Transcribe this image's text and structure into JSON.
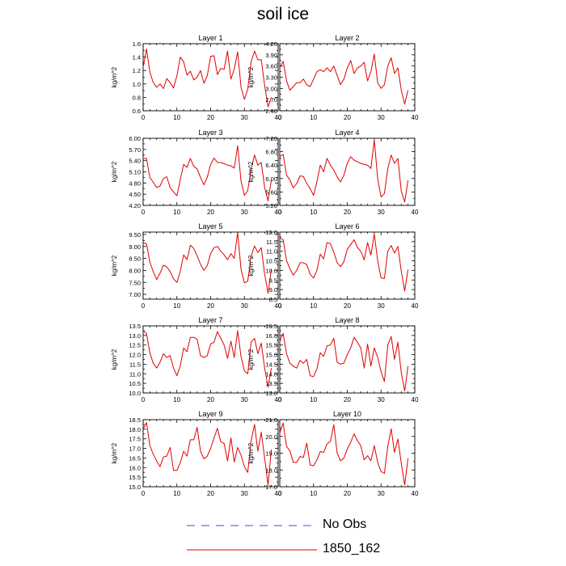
{
  "title": "soil ice",
  "legend": [
    {
      "label": "No Obs",
      "color": "#4a4ac8",
      "dash": true
    },
    {
      "label": "1850_162",
      "color": "#e00000",
      "dash": false
    }
  ],
  "chart_data": [
    {
      "type": "line",
      "title": "Layer 1",
      "ylabel": "kg/m^2",
      "xlim": [
        0,
        40
      ],
      "xticks": [
        0,
        10,
        20,
        30,
        40
      ],
      "ylim": [
        0.6,
        1.6
      ],
      "yticks": [
        "0.6",
        "0.8",
        "1.0",
        "1.2",
        "1.4",
        "1.6"
      ],
      "x": [
        0,
        1,
        2,
        3,
        4,
        5,
        6,
        7,
        8,
        9,
        10,
        11,
        12,
        13,
        14,
        15,
        16,
        17,
        18,
        19,
        20,
        21,
        22,
        23,
        24,
        25,
        26,
        27,
        28,
        29,
        30,
        31,
        32,
        33,
        34,
        35,
        36,
        37,
        38,
        39
      ],
      "series": [
        {
          "values": [
            1.25,
            1.52,
            1.18,
            1.02,
            0.95,
            1.0,
            0.93,
            1.08,
            1.02,
            0.94,
            1.12,
            1.4,
            1.33,
            1.13,
            1.19,
            1.06,
            1.1,
            1.2,
            1.01,
            1.12,
            1.41,
            1.42,
            1.14,
            1.23,
            1.22,
            1.49,
            1.07,
            1.22,
            1.48,
            0.95,
            0.77,
            0.92,
            1.33,
            1.49,
            1.36,
            1.36,
            0.98,
            0.66,
            0.8,
            null
          ]
        }
      ]
    },
    {
      "type": "line",
      "title": "Layer 2",
      "ylabel": "kg/m^2",
      "xlim": [
        0,
        40
      ],
      "xticks": [
        0,
        10,
        20,
        30,
        40
      ],
      "ylim": [
        2.4,
        4.2
      ],
      "yticks": [
        "2.40",
        "2.70",
        "3.00",
        "3.30",
        "3.60",
        "3.90",
        "4.20"
      ],
      "x": [
        0,
        1,
        2,
        3,
        4,
        5,
        6,
        7,
        8,
        9,
        10,
        11,
        12,
        13,
        14,
        15,
        16,
        17,
        18,
        19,
        20,
        21,
        22,
        23,
        24,
        25,
        26,
        27,
        28,
        29,
        30,
        31,
        32,
        33,
        34,
        35,
        36,
        37,
        38,
        39
      ],
      "series": [
        {
          "values": [
            3.55,
            3.73,
            3.2,
            2.95,
            3.05,
            3.15,
            3.15,
            3.25,
            3.1,
            3.05,
            3.25,
            3.45,
            3.5,
            3.45,
            3.55,
            3.45,
            3.6,
            3.35,
            3.1,
            3.25,
            3.55,
            3.75,
            3.4,
            3.55,
            3.6,
            3.7,
            3.2,
            3.45,
            3.92,
            3.15,
            3.0,
            3.1,
            3.6,
            3.82,
            3.4,
            3.55,
            2.95,
            2.58,
            2.95,
            null
          ]
        }
      ]
    },
    {
      "type": "line",
      "title": "Layer 3",
      "ylabel": "kg/m^2",
      "xlim": [
        0,
        40
      ],
      "xticks": [
        0,
        10,
        20,
        30,
        40
      ],
      "ylim": [
        4.2,
        6.0
      ],
      "yticks": [
        "4.20",
        "4.50",
        "4.80",
        "5.10",
        "5.40",
        "5.70",
        "6.00"
      ],
      "x": [
        0,
        1,
        2,
        3,
        4,
        5,
        6,
        7,
        8,
        9,
        10,
        11,
        12,
        13,
        14,
        15,
        16,
        17,
        18,
        19,
        20,
        21,
        22,
        23,
        24,
        25,
        26,
        27,
        28,
        29,
        30,
        31,
        32,
        33,
        34,
        35,
        36,
        37,
        38,
        39
      ],
      "series": [
        {
          "values": [
            5.45,
            5.46,
            4.95,
            4.82,
            4.68,
            4.72,
            4.92,
            4.97,
            4.68,
            4.56,
            4.46,
            4.88,
            5.3,
            5.22,
            5.46,
            5.25,
            5.18,
            4.95,
            4.75,
            4.95,
            5.3,
            5.47,
            5.35,
            5.35,
            5.32,
            5.28,
            5.26,
            5.2,
            5.8,
            4.85,
            4.47,
            4.6,
            5.18,
            5.55,
            5.28,
            5.35,
            4.68,
            4.32,
            4.88,
            null
          ]
        }
      ]
    },
    {
      "type": "line",
      "title": "Layer 4",
      "ylabel": "kg/m^2",
      "xlim": [
        0,
        40
      ],
      "xticks": [
        0,
        10,
        20,
        30,
        40
      ],
      "ylim": [
        5.2,
        7.2
      ],
      "yticks": [
        "5.20",
        "5.60",
        "6.00",
        "6.40",
        "6.80",
        "7.20"
      ],
      "x": [
        0,
        1,
        2,
        3,
        4,
        5,
        6,
        7,
        8,
        9,
        10,
        11,
        12,
        13,
        14,
        15,
        16,
        17,
        18,
        19,
        20,
        21,
        22,
        23,
        24,
        25,
        26,
        27,
        28,
        29,
        30,
        31,
        32,
        33,
        34,
        35,
        36,
        37,
        38,
        39
      ],
      "series": [
        {
          "values": [
            6.65,
            6.72,
            6.1,
            5.96,
            5.72,
            5.85,
            6.08,
            6.06,
            5.85,
            5.7,
            5.5,
            5.9,
            6.4,
            6.2,
            6.6,
            6.4,
            6.25,
            6.05,
            5.9,
            6.1,
            6.45,
            6.65,
            6.55,
            6.5,
            6.45,
            6.42,
            6.4,
            6.3,
            7.15,
            6.0,
            5.45,
            5.55,
            6.3,
            6.7,
            6.45,
            6.6,
            5.62,
            5.3,
            5.95,
            null
          ]
        }
      ]
    },
    {
      "type": "line",
      "title": "Layer 5",
      "ylabel": "kg/m^2",
      "xlim": [
        0,
        40
      ],
      "xticks": [
        0,
        10,
        20,
        30,
        40
      ],
      "ylim": [
        6.8,
        9.6
      ],
      "yticks": [
        "7.00",
        "7.50",
        "8.00",
        "8.50",
        "9.00",
        "9.50"
      ],
      "x": [
        0,
        1,
        2,
        3,
        4,
        5,
        6,
        7,
        8,
        9,
        10,
        11,
        12,
        13,
        14,
        15,
        16,
        17,
        18,
        19,
        20,
        21,
        22,
        23,
        24,
        25,
        26,
        27,
        28,
        29,
        30,
        31,
        32,
        33,
        34,
        35,
        36,
        37,
        38,
        39
      ],
      "series": [
        {
          "values": [
            9.15,
            9.12,
            8.35,
            7.95,
            7.62,
            7.88,
            8.22,
            8.15,
            7.95,
            7.65,
            7.5,
            7.95,
            8.65,
            8.45,
            9.05,
            8.92,
            8.6,
            8.25,
            8.0,
            8.2,
            8.7,
            8.95,
            9.0,
            8.8,
            8.65,
            8.45,
            8.7,
            8.5,
            9.58,
            8.05,
            7.48,
            7.55,
            8.6,
            9.02,
            8.75,
            8.95,
            7.85,
            7.05,
            8.05,
            null
          ]
        }
      ]
    },
    {
      "type": "line",
      "title": "Layer 6",
      "ylabel": "kg/m^2",
      "xlim": [
        0,
        40
      ],
      "xticks": [
        0,
        10,
        20,
        30,
        40
      ],
      "ylim": [
        8.5,
        12.0
      ],
      "yticks": [
        "8.5",
        "9.0",
        "9.5",
        "10.0",
        "10.5",
        "11.0",
        "11.5",
        "12.0"
      ],
      "x": [
        0,
        1,
        2,
        3,
        4,
        5,
        6,
        7,
        8,
        9,
        10,
        11,
        12,
        13,
        14,
        15,
        16,
        17,
        18,
        19,
        20,
        21,
        22,
        23,
        24,
        25,
        26,
        27,
        28,
        29,
        30,
        31,
        32,
        33,
        34,
        35,
        36,
        37,
        38,
        39
      ],
      "series": [
        {
          "values": [
            11.7,
            11.6,
            10.5,
            10.1,
            9.75,
            10.0,
            10.4,
            10.4,
            10.3,
            9.8,
            9.6,
            10.0,
            10.85,
            10.6,
            11.45,
            11.4,
            10.95,
            10.4,
            10.2,
            10.45,
            11.1,
            11.35,
            11.6,
            11.2,
            11.0,
            10.55,
            11.45,
            10.8,
            11.9,
            10.5,
            9.6,
            9.58,
            11.0,
            11.3,
            10.9,
            11.25,
            9.95,
            8.92,
            10.05,
            null
          ]
        }
      ]
    },
    {
      "type": "line",
      "title": "Layer 7",
      "ylabel": "kg/m^2",
      "xlim": [
        0,
        40
      ],
      "xticks": [
        0,
        10,
        20,
        30,
        40
      ],
      "ylim": [
        10.0,
        13.5
      ],
      "yticks": [
        "10.0",
        "10.5",
        "11.0",
        "11.5",
        "12.0",
        "12.5",
        "13.0",
        "13.5"
      ],
      "x": [
        0,
        1,
        2,
        3,
        4,
        5,
        6,
        7,
        8,
        9,
        10,
        11,
        12,
        13,
        14,
        15,
        16,
        17,
        18,
        19,
        20,
        21,
        22,
        23,
        24,
        25,
        26,
        27,
        28,
        29,
        30,
        31,
        32,
        33,
        34,
        35,
        36,
        37,
        38,
        39
      ],
      "series": [
        {
          "values": [
            13.25,
            13.1,
            12.1,
            11.55,
            11.3,
            11.6,
            12.05,
            11.85,
            11.95,
            11.3,
            10.9,
            11.4,
            12.35,
            12.15,
            12.9,
            12.9,
            12.8,
            11.95,
            11.85,
            11.95,
            12.55,
            12.65,
            13.2,
            12.85,
            12.5,
            11.8,
            12.7,
            11.85,
            13.25,
            11.9,
            11.15,
            11.0,
            12.65,
            12.85,
            12.05,
            12.6,
            11.3,
            10.3,
            11.3,
            null
          ]
        }
      ]
    },
    {
      "type": "line",
      "title": "Layer 8",
      "ylabel": "kg/m^2",
      "xlim": [
        0,
        40
      ],
      "xticks": [
        0,
        10,
        20,
        30,
        40
      ],
      "ylim": [
        13.0,
        16.5
      ],
      "yticks": [
        "13.0",
        "13.5",
        "14.0",
        "14.5",
        "15.0",
        "15.5",
        "16.0",
        "16.5"
      ],
      "x": [
        0,
        1,
        2,
        3,
        4,
        5,
        6,
        7,
        8,
        9,
        10,
        11,
        12,
        13,
        14,
        15,
        16,
        17,
        18,
        19,
        20,
        21,
        22,
        23,
        24,
        25,
        26,
        27,
        28,
        29,
        30,
        31,
        32,
        33,
        34,
        35,
        36,
        37,
        38,
        39
      ],
      "series": [
        {
          "values": [
            15.75,
            16.1,
            15.05,
            14.55,
            14.4,
            14.3,
            14.7,
            14.55,
            14.75,
            13.9,
            13.85,
            14.25,
            15.1,
            14.9,
            15.45,
            15.5,
            15.85,
            14.6,
            14.5,
            14.55,
            15.0,
            15.35,
            15.9,
            15.65,
            15.35,
            14.3,
            15.55,
            14.4,
            15.35,
            14.85,
            14.1,
            13.6,
            15.5,
            15.95,
            14.75,
            15.65,
            14.05,
            13.1,
            14.4,
            null
          ]
        }
      ]
    },
    {
      "type": "line",
      "title": "Layer 9",
      "ylabel": "kg/m^2",
      "xlim": [
        0,
        40
      ],
      "xticks": [
        0,
        10,
        20,
        30,
        40
      ],
      "ylim": [
        15.0,
        18.5
      ],
      "yticks": [
        "15.0",
        "15.5",
        "16.0",
        "16.5",
        "17.0",
        "17.5",
        "18.0",
        "18.5"
      ],
      "x": [
        0,
        1,
        2,
        3,
        4,
        5,
        6,
        7,
        8,
        9,
        10,
        11,
        12,
        13,
        14,
        15,
        16,
        17,
        18,
        19,
        20,
        21,
        22,
        23,
        24,
        25,
        26,
        27,
        28,
        29,
        30,
        31,
        32,
        33,
        34,
        35,
        36,
        37,
        38,
        39
      ],
      "series": [
        {
          "values": [
            18.0,
            18.35,
            17.15,
            16.7,
            16.35,
            16.05,
            16.55,
            16.6,
            17.05,
            15.85,
            15.85,
            16.25,
            16.85,
            16.6,
            17.45,
            17.45,
            18.1,
            16.85,
            16.45,
            16.6,
            17.0,
            17.55,
            18.05,
            17.35,
            17.25,
            16.35,
            17.55,
            16.3,
            17.05,
            16.65,
            16.05,
            15.75,
            17.4,
            18.25,
            16.85,
            17.85,
            16.5,
            15.1,
            16.95,
            null
          ]
        }
      ]
    },
    {
      "type": "line",
      "title": "Layer 10",
      "ylabel": "kg/m^2",
      "xlim": [
        0,
        40
      ],
      "xticks": [
        0,
        10,
        20,
        30,
        40
      ],
      "ylim": [
        17.0,
        21.0
      ],
      "yticks": [
        "17.0",
        "18.0",
        "19.0",
        "20.0",
        "21.0"
      ],
      "x": [
        0,
        1,
        2,
        3,
        4,
        5,
        6,
        7,
        8,
        9,
        10,
        11,
        12,
        13,
        14,
        15,
        16,
        17,
        18,
        19,
        20,
        21,
        22,
        23,
        24,
        25,
        26,
        27,
        28,
        29,
        30,
        31,
        32,
        33,
        34,
        35,
        36,
        37,
        38,
        39
      ],
      "series": [
        {
          "values": [
            20.2,
            20.8,
            19.4,
            19.15,
            18.45,
            18.45,
            18.8,
            18.75,
            19.6,
            18.3,
            18.25,
            18.6,
            19.1,
            19.05,
            19.55,
            19.7,
            20.7,
            19.0,
            18.55,
            18.7,
            19.25,
            19.65,
            20.15,
            19.75,
            19.45,
            18.6,
            18.85,
            18.55,
            19.45,
            18.45,
            17.9,
            17.8,
            19.4,
            20.45,
            19.05,
            19.85,
            18.4,
            17.1,
            18.7,
            null
          ]
        }
      ]
    }
  ]
}
